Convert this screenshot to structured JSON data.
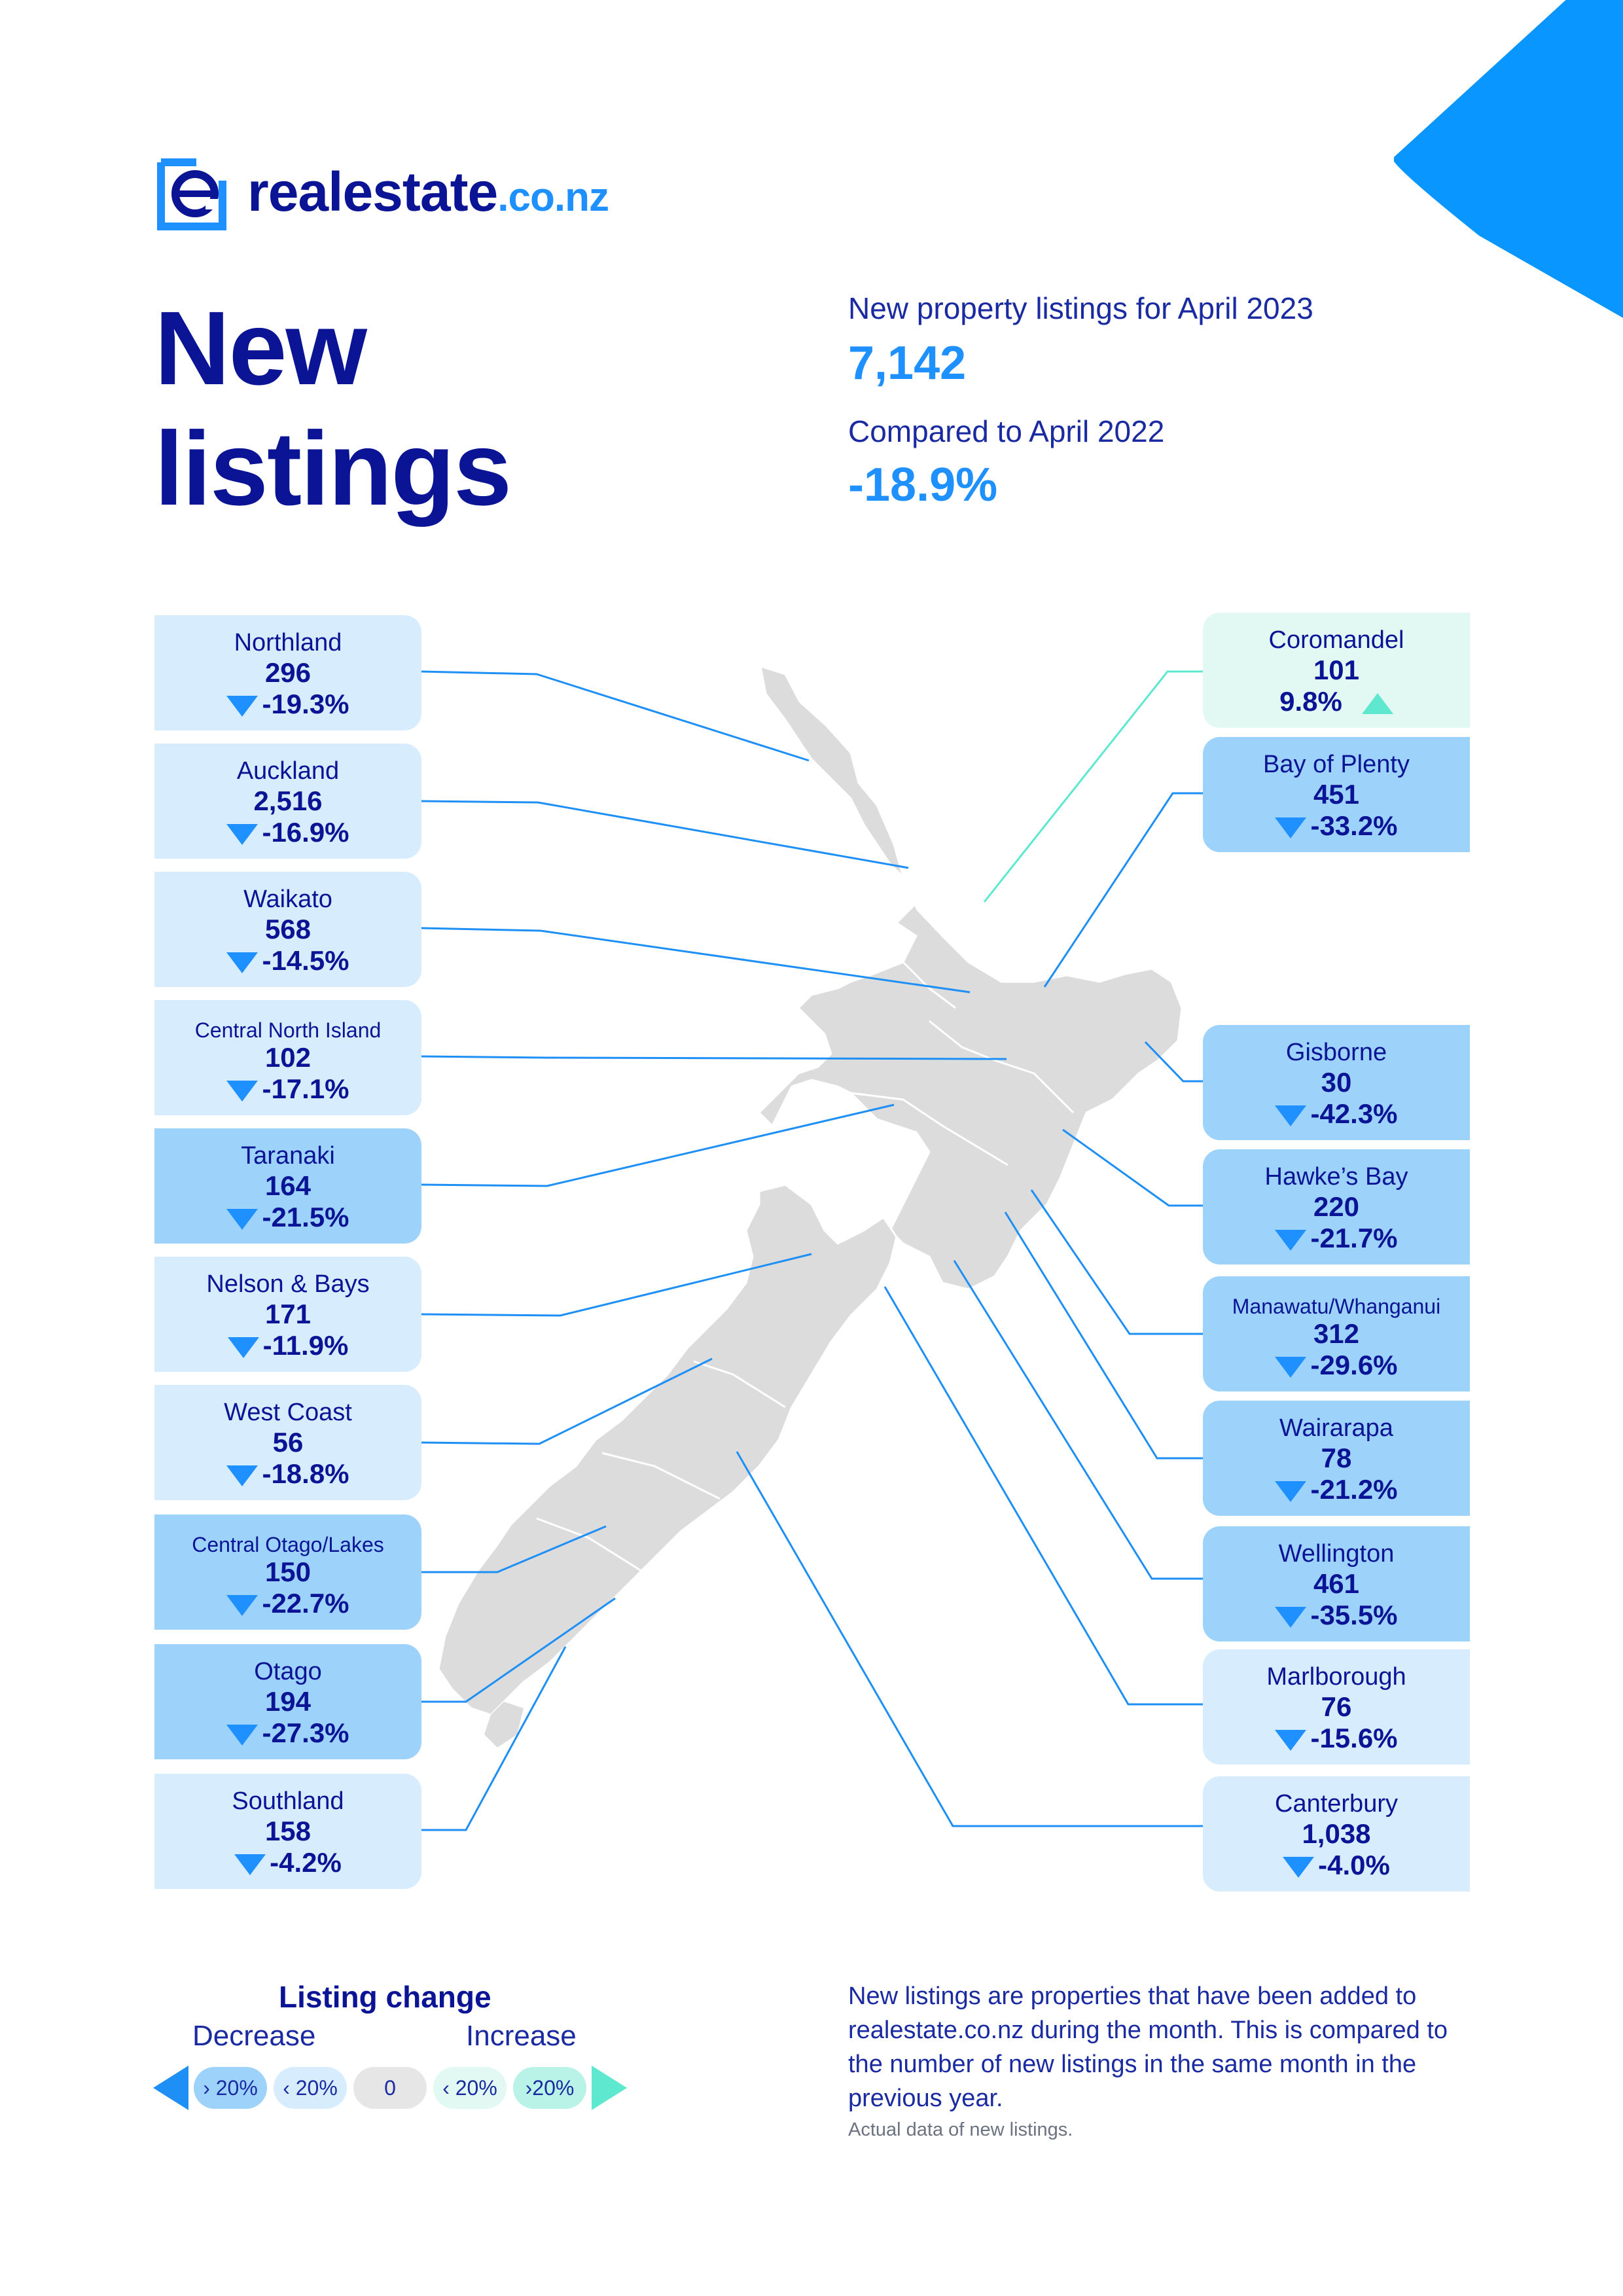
{
  "brand": {
    "name_main": "realestate",
    "name_tld": ".co.nz",
    "logo_letter": "e"
  },
  "headline": {
    "line1": "New",
    "line2": "listings"
  },
  "summary": {
    "listings_label": "New property listings for April 2023",
    "listings_value": "7,142",
    "compare_label": "Compared to April 2022",
    "compare_value": "-18.9%"
  },
  "colors": {
    "navy": "#0a1494",
    "accent_blue": "#1e90ff",
    "corner_blue": "#0a96ff",
    "decrease_large": "#9dd3fb",
    "decrease_small": "#d7ecfc",
    "increase_small": "#e2f8f3",
    "increase_large": "#b9f3e8",
    "increase_arrow": "#5ee8cf",
    "map_fill": "#dcdcdc"
  },
  "regions_left": [
    {
      "name": "Northland",
      "count": "296",
      "change": "-19.3%",
      "direction": "down",
      "level": "decrease_small"
    },
    {
      "name": "Auckland",
      "count": "2,516",
      "change": "-16.9%",
      "direction": "down",
      "level": "decrease_small"
    },
    {
      "name": "Waikato",
      "count": "568",
      "change": "-14.5%",
      "direction": "down",
      "level": "decrease_small"
    },
    {
      "name": "Central North Island",
      "count": "102",
      "change": "-17.1%",
      "direction": "down",
      "level": "decrease_small"
    },
    {
      "name": "Taranaki",
      "count": "164",
      "change": "-21.5%",
      "direction": "down",
      "level": "decrease_large"
    },
    {
      "name": "Nelson & Bays",
      "count": "171",
      "change": "-11.9%",
      "direction": "down",
      "level": "decrease_small"
    },
    {
      "name": "West Coast",
      "count": "56",
      "change": "-18.8%",
      "direction": "down",
      "level": "decrease_small"
    },
    {
      "name": "Central Otago/Lakes",
      "count": "150",
      "change": "-22.7%",
      "direction": "down",
      "level": "decrease_large"
    },
    {
      "name": "Otago",
      "count": "194",
      "change": "-27.3%",
      "direction": "down",
      "level": "decrease_large"
    },
    {
      "name": "Southland",
      "count": "158",
      "change": "-4.2%",
      "direction": "down",
      "level": "decrease_small"
    }
  ],
  "regions_right": [
    {
      "name": "Coromandel",
      "count": "101",
      "change": "9.8%",
      "direction": "up",
      "level": "increase_small"
    },
    {
      "name": "Bay of Plenty",
      "count": "451",
      "change": "-33.2%",
      "direction": "down",
      "level": "decrease_large"
    },
    {
      "name": "Gisborne",
      "count": "30",
      "change": "-42.3%",
      "direction": "down",
      "level": "decrease_large"
    },
    {
      "name": "Hawke’s Bay",
      "count": "220",
      "change": "-21.7%",
      "direction": "down",
      "level": "decrease_large"
    },
    {
      "name": "Manawatu/Whanganui",
      "count": "312",
      "change": "-29.6%",
      "direction": "down",
      "level": "decrease_large"
    },
    {
      "name": "Wairarapa",
      "count": "78",
      "change": "-21.2%",
      "direction": "down",
      "level": "decrease_large"
    },
    {
      "name": "Wellington",
      "count": "461",
      "change": "-35.5%",
      "direction": "down",
      "level": "decrease_large"
    },
    {
      "name": "Marlborough",
      "count": "76",
      "change": "-15.6%",
      "direction": "down",
      "level": "decrease_small"
    },
    {
      "name": "Canterbury",
      "count": "1,038",
      "change": "-4.0%",
      "direction": "down",
      "level": "decrease_small"
    }
  ],
  "legend": {
    "title": "Listing change",
    "decrease_label": "Decrease",
    "increase_label": "Increase",
    "pills": [
      "› 20%",
      "‹ 20%",
      "0",
      "‹ 20%",
      "›20%"
    ]
  },
  "footnote": {
    "text": "New listings are properties that have been added to realestate.co.nz during the month. This is compared to the number of new listings in the same month in the previous year.",
    "small": "Actual data of new listings."
  }
}
